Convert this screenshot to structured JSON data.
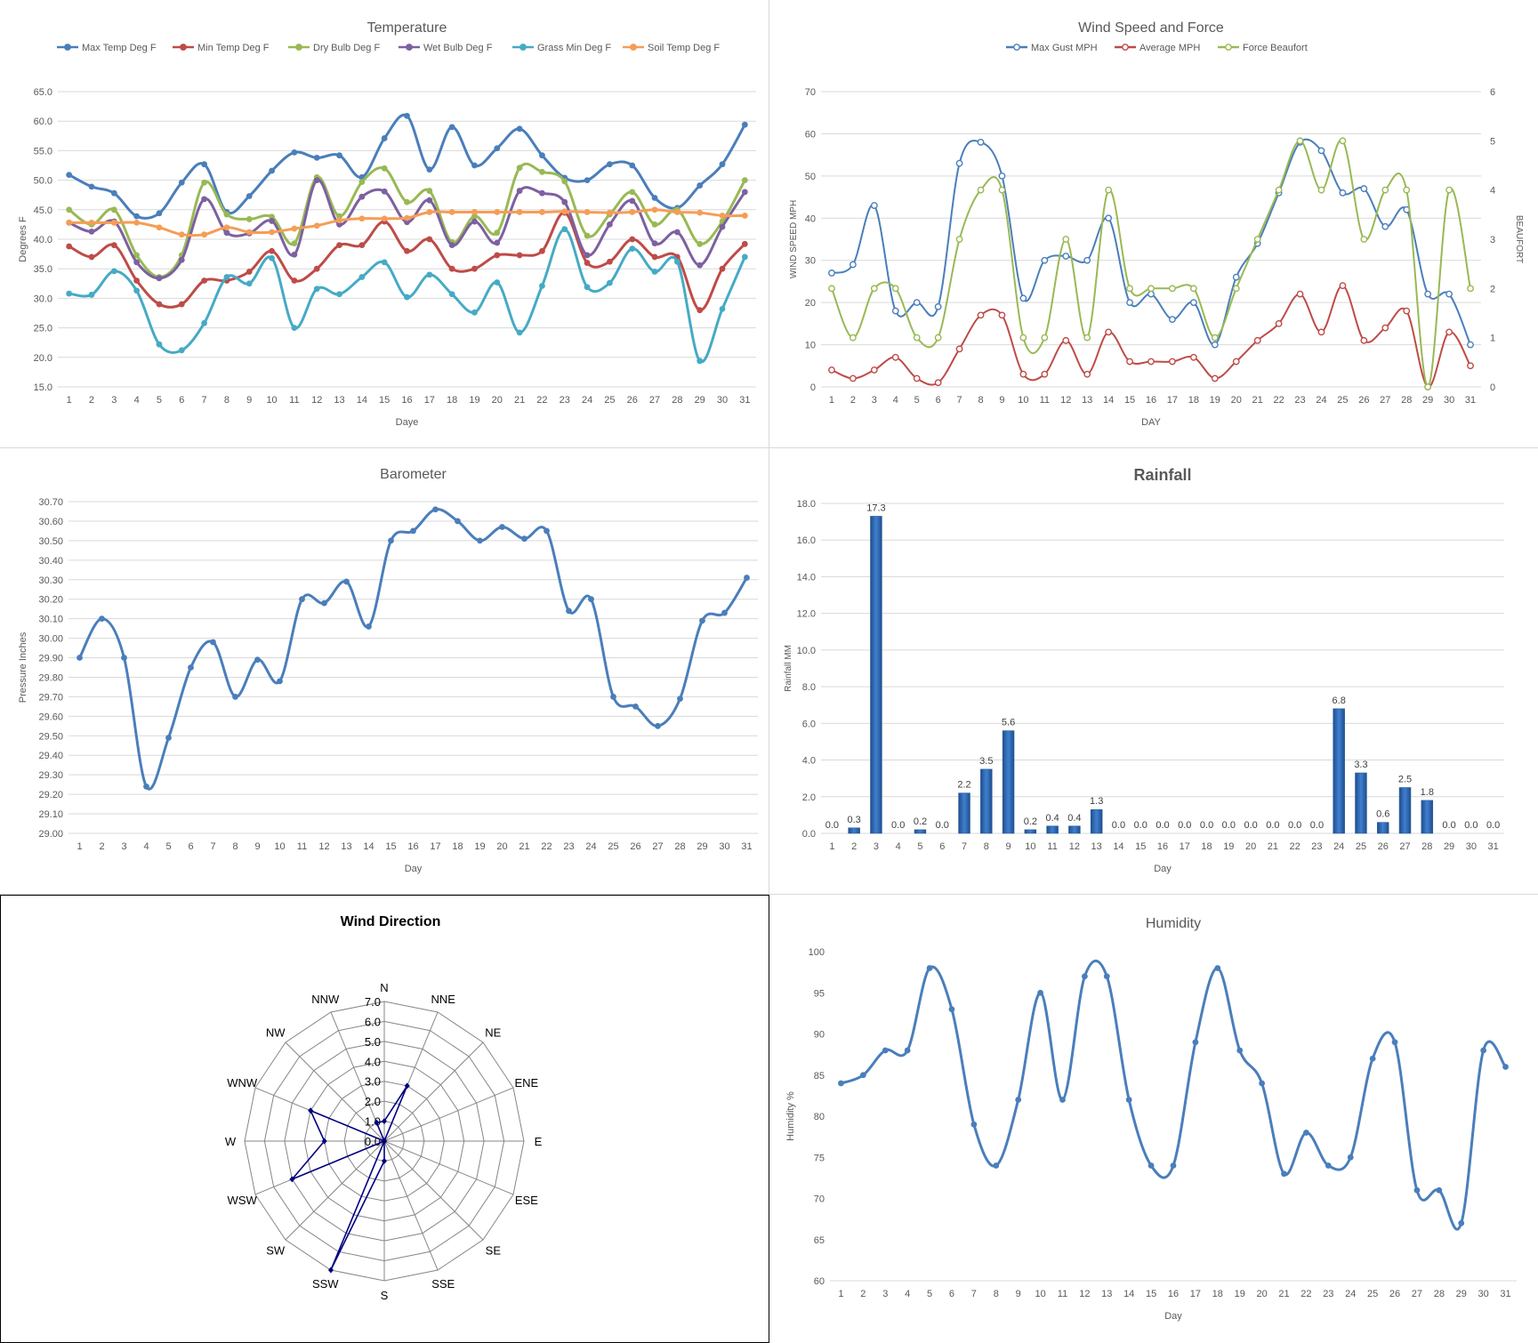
{
  "chart_data": [
    {
      "id": "temperature",
      "type": "line",
      "title": "Temperature",
      "xlabel": "Daye",
      "ylabel": "Degrees F",
      "ylim": [
        15,
        65
      ],
      "ytick_step": 5,
      "ytick_decimals": 1,
      "grid": true,
      "legend_position": "top",
      "categories": [
        "1",
        "2",
        "3",
        "4",
        "5",
        "6",
        "7",
        "8",
        "9",
        "10",
        "11",
        "12",
        "13",
        "14",
        "15",
        "16",
        "17",
        "18",
        "19",
        "20",
        "21",
        "22",
        "23",
        "24",
        "25",
        "26",
        "27",
        "28",
        "29",
        "30",
        "31"
      ],
      "series": [
        {
          "name": "Max Temp Deg F",
          "color": "#4a7ebb",
          "values": [
            50.9,
            48.9,
            47.8,
            43.9,
            44.4,
            49.6,
            52.7,
            44.6,
            47.3,
            51.6,
            54.7,
            53.8,
            54.2,
            50.5,
            57.1,
            60.9,
            51.8,
            59.0,
            52.5,
            55.4,
            58.7,
            54.2,
            50.4,
            50.0,
            52.7,
            52.5,
            47.0,
            45.3,
            49.1,
            52.7,
            59.4
          ]
        },
        {
          "name": "Min Temp Deg F",
          "color": "#be4b48",
          "values": [
            38.8,
            37.0,
            39.0,
            33.0,
            29.0,
            29.0,
            33.0,
            33.0,
            34.5,
            38.0,
            33.0,
            35.0,
            39.0,
            39.0,
            43.0,
            38.0,
            40.0,
            35.0,
            35.0,
            37.3,
            37.3,
            38.0,
            44.5,
            36.0,
            36.2,
            40.0,
            37.0,
            37.0,
            28.0,
            35.0,
            39.2
          ]
        },
        {
          "name": "Dry Bulb Deg F",
          "color": "#98b954",
          "values": [
            45.0,
            42.5,
            45.0,
            37.3,
            33.6,
            37.3,
            49.6,
            44.2,
            43.4,
            43.8,
            39.3,
            50.5,
            43.9,
            49.7,
            52.0,
            46.3,
            48.2,
            39.5,
            43.9,
            41.1,
            52.1,
            51.4,
            49.8,
            40.6,
            44.2,
            48.0,
            42.5,
            45.0,
            39.2,
            43.0,
            50.0
          ]
        },
        {
          "name": "Wet Bulb Deg F",
          "color": "#7d60a0",
          "values": [
            42.8,
            41.3,
            43.0,
            36.1,
            33.4,
            36.5,
            46.8,
            41.1,
            41.0,
            43.1,
            37.4,
            50.0,
            42.5,
            47.2,
            48.1,
            42.9,
            46.6,
            39.0,
            43.0,
            39.4,
            48.2,
            47.8,
            46.3,
            37.3,
            42.5,
            46.5,
            39.3,
            41.2,
            35.6,
            42.1,
            48.0
          ]
        },
        {
          "name": "Grass Min Deg F",
          "color": "#46aac5",
          "values": [
            30.8,
            30.6,
            34.6,
            31.3,
            22.2,
            21.2,
            25.8,
            33.6,
            32.5,
            36.8,
            25.0,
            31.6,
            30.7,
            33.6,
            36.1,
            30.2,
            34.0,
            30.7,
            27.6,
            32.7,
            24.2,
            32.1,
            41.7,
            31.9,
            32.6,
            38.4,
            34.5,
            36.2,
            19.4,
            28.2,
            37.0
          ]
        },
        {
          "name": "Soil Temp Deg F",
          "color": "#f59d56",
          "values": [
            42.8,
            42.8,
            42.8,
            42.8,
            42.0,
            40.8,
            40.8,
            42.0,
            41.2,
            41.2,
            41.8,
            42.3,
            43.2,
            43.5,
            43.5,
            43.6,
            44.6,
            44.6,
            44.6,
            44.6,
            44.6,
            44.6,
            44.7,
            44.6,
            44.5,
            44.6,
            45.0,
            44.6,
            44.5,
            44.0,
            44.0
          ]
        }
      ]
    },
    {
      "id": "wind",
      "type": "line",
      "title": "Wind Speed and Force",
      "xlabel": "DAY",
      "ylabel": "WIND SPEED MPH",
      "y2label": "BEAUFORT",
      "ylim": [
        0,
        70
      ],
      "ytick_step": 10,
      "y2lim": [
        0,
        6
      ],
      "y2tick_step": 1,
      "grid": true,
      "legend_position": "top",
      "categories": [
        "1",
        "2",
        "3",
        "4",
        "5",
        "6",
        "7",
        "8",
        "9",
        "10",
        "11",
        "12",
        "13",
        "14",
        "15",
        "16",
        "17",
        "18",
        "19",
        "20",
        "21",
        "22",
        "23",
        "24",
        "25",
        "26",
        "27",
        "28",
        "29",
        "30",
        "31"
      ],
      "series": [
        {
          "name": "Max Gust MPH",
          "color": "#4a7ebb",
          "axis": "left",
          "values": [
            27,
            29,
            43,
            18,
            20,
            19,
            53,
            58,
            50,
            21,
            30,
            31,
            30,
            40,
            20,
            22,
            16,
            20,
            10,
            26,
            34,
            46,
            58,
            56,
            46,
            47,
            38,
            42,
            22,
            22,
            10
          ]
        },
        {
          "name": "Average MPH",
          "color": "#be4b48",
          "axis": "left",
          "values": [
            4,
            2,
            4,
            7,
            2,
            1,
            9,
            17,
            17,
            3,
            3,
            11,
            3,
            13,
            6,
            6,
            6,
            7,
            2,
            6,
            11,
            15,
            22,
            13,
            24,
            11,
            14,
            18,
            0,
            13,
            5
          ]
        },
        {
          "name": "Force Beaufort",
          "color": "#98b954",
          "axis": "right",
          "values": [
            2,
            1,
            2,
            2,
            1,
            1,
            3,
            4,
            4,
            1,
            1,
            3,
            1,
            4,
            2,
            2,
            2,
            2,
            1,
            2,
            3,
            4,
            5,
            4,
            5,
            3,
            4,
            4,
            0,
            4,
            2
          ]
        }
      ]
    },
    {
      "id": "barometer",
      "type": "line",
      "title": "Barometer",
      "xlabel": "Day",
      "ylabel": "Pressure Inches",
      "ylim": [
        29.0,
        30.7
      ],
      "ytick_step": 0.1,
      "ytick_decimals": 2,
      "grid": true,
      "categories": [
        "1",
        "2",
        "3",
        "4",
        "5",
        "6",
        "7",
        "8",
        "9",
        "10",
        "11",
        "12",
        "13",
        "14",
        "15",
        "16",
        "17",
        "18",
        "19",
        "20",
        "21",
        "22",
        "23",
        "24",
        "25",
        "26",
        "27",
        "28",
        "29",
        "30",
        "31"
      ],
      "series": [
        {
          "name": "Pressure",
          "color": "#4a7ebb",
          "values": [
            29.9,
            30.1,
            29.9,
            29.24,
            29.49,
            29.85,
            29.98,
            29.7,
            29.89,
            29.78,
            30.2,
            30.18,
            30.29,
            30.06,
            30.5,
            30.55,
            30.66,
            30.6,
            30.5,
            30.57,
            30.51,
            30.55,
            30.14,
            30.2,
            29.7,
            29.65,
            29.55,
            29.69,
            30.09,
            30.13,
            30.31
          ]
        }
      ]
    },
    {
      "id": "rainfall",
      "type": "bar",
      "title": "Rainfall",
      "xlabel": "Day",
      "ylabel": "Rainfall MM",
      "ylim": [
        0,
        18
      ],
      "ytick_step": 2,
      "ytick_decimals": 1,
      "grid": true,
      "categories": [
        "1",
        "2",
        "3",
        "4",
        "5",
        "6",
        "7",
        "8",
        "9",
        "10",
        "11",
        "12",
        "13",
        "14",
        "15",
        "16",
        "17",
        "18",
        "19",
        "20",
        "21",
        "22",
        "23",
        "24",
        "25",
        "26",
        "27",
        "28",
        "29",
        "30",
        "31"
      ],
      "series": [
        {
          "name": "Rainfall",
          "color": "#3f7fd0",
          "values": [
            0.0,
            0.3,
            17.3,
            0.0,
            0.2,
            0.0,
            2.2,
            3.5,
            5.6,
            0.2,
            0.4,
            0.4,
            1.3,
            0.0,
            0.0,
            0.0,
            0.0,
            0.0,
            0.0,
            0.0,
            0.0,
            0.0,
            0.0,
            6.8,
            3.3,
            0.6,
            2.5,
            1.8,
            0.0,
            0.0,
            0.0
          ]
        }
      ]
    },
    {
      "id": "wind_direction",
      "type": "radar",
      "title": "Wind Direction",
      "rlim": [
        0,
        7
      ],
      "rtick_step": 1,
      "rtick_decimals": 1,
      "categories": [
        "N",
        "NNE",
        "NE",
        "ENE",
        "E",
        "ESE",
        "SE",
        "SSE",
        "S",
        "SSW",
        "SW",
        "WSW",
        "W",
        "WNW",
        "NW",
        "NNW"
      ],
      "series": [
        {
          "name": "Wind Direction",
          "color": "#000080",
          "values": [
            1,
            3,
            0,
            0,
            0,
            0,
            0,
            0,
            1,
            7,
            0,
            5,
            3,
            4,
            0,
            1
          ]
        }
      ]
    },
    {
      "id": "humidity",
      "type": "line",
      "title": "Humidity",
      "xlabel": "Day",
      "ylabel": "Humidity %",
      "ylim": [
        60,
        100
      ],
      "ytick_step": 5,
      "ytick_decimals": 0,
      "grid": false,
      "categories": [
        "1",
        "2",
        "3",
        "4",
        "5",
        "6",
        "7",
        "8",
        "9",
        "10",
        "11",
        "12",
        "13",
        "14",
        "15",
        "16",
        "17",
        "18",
        "19",
        "20",
        "21",
        "22",
        "23",
        "24",
        "25",
        "26",
        "27",
        "28",
        "29",
        "30",
        "31"
      ],
      "series": [
        {
          "name": "Humidity",
          "color": "#4a7ebb",
          "values": [
            84,
            85,
            88,
            88,
            98,
            93,
            79,
            74,
            82,
            95,
            82,
            97,
            97,
            82,
            74,
            74,
            89,
            98,
            88,
            84,
            73,
            78,
            74,
            75,
            87,
            89,
            71,
            71,
            67,
            88,
            86
          ]
        }
      ]
    }
  ]
}
